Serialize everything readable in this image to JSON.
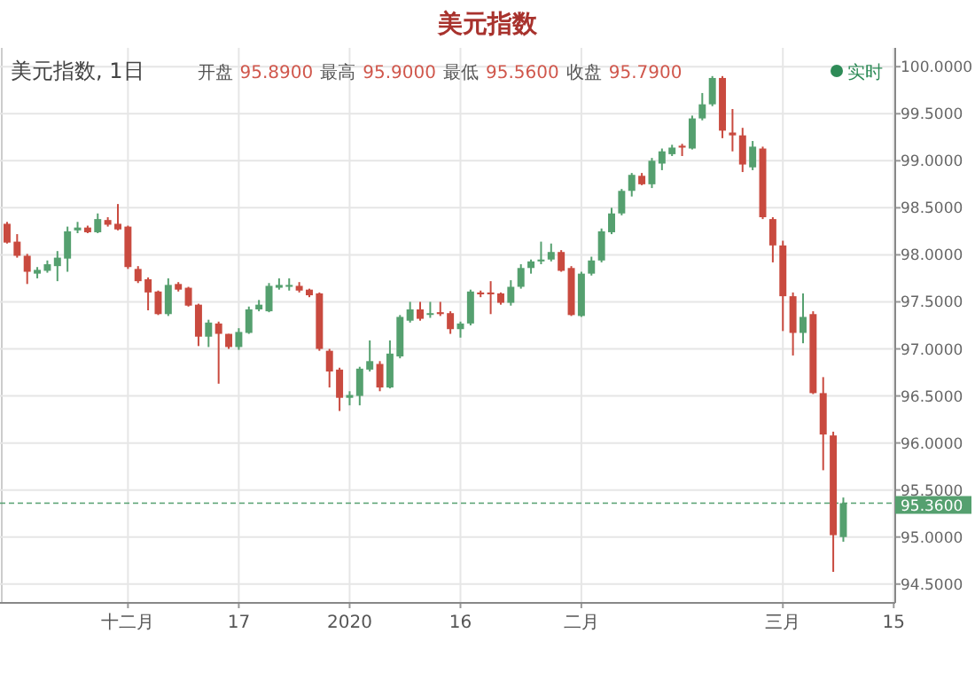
{
  "chart_data": {
    "type": "candlestick",
    "title": "美元指数",
    "annotations": [
      "美元指数, 1日",
      "开盘",
      "95.8900",
      "最高",
      "95.9000",
      "最低",
      "95.5600",
      "收盘",
      "95.7900",
      "实时"
    ],
    "categories": [
      null,
      null,
      null,
      null,
      null,
      null,
      null,
      null,
      null,
      null,
      null,
      null,
      "十二月",
      null,
      null,
      null,
      null,
      null,
      null,
      null,
      null,
      null,
      null,
      "17",
      null,
      null,
      null,
      null,
      null,
      null,
      null,
      null,
      null,
      null,
      "2020",
      null,
      null,
      null,
      null,
      null,
      null,
      null,
      null,
      null,
      null,
      "16",
      null,
      null,
      null,
      null,
      null,
      null,
      null,
      null,
      null,
      null,
      null,
      "二月",
      null,
      null,
      null,
      null,
      null,
      null,
      null,
      null,
      null,
      null,
      null,
      null,
      null,
      null,
      null,
      null,
      null,
      null,
      null,
      "三月",
      null,
      null,
      null,
      null,
      null,
      null,
      null,
      null,
      null,
      null,
      "15"
    ],
    "ohlc": [
      [
        98.33,
        98.35,
        98.12,
        98.13
      ],
      [
        98.14,
        98.22,
        97.97,
        97.99
      ],
      [
        97.99,
        98.01,
        97.69,
        97.82
      ],
      [
        97.8,
        97.87,
        97.75,
        97.84
      ],
      [
        97.83,
        97.94,
        97.81,
        97.9
      ],
      [
        97.88,
        98.04,
        97.72,
        97.97
      ],
      [
        97.96,
        98.3,
        97.82,
        98.25
      ],
      [
        98.26,
        98.35,
        98.23,
        98.29
      ],
      [
        98.29,
        98.31,
        98.23,
        98.24
      ],
      [
        98.24,
        98.44,
        98.23,
        98.38
      ],
      [
        98.37,
        98.4,
        98.3,
        98.32
      ],
      [
        98.33,
        98.54,
        98.26,
        98.27
      ],
      [
        98.3,
        98.31,
        97.85,
        97.87
      ],
      [
        97.85,
        97.88,
        97.7,
        97.72
      ],
      [
        97.74,
        97.76,
        97.41,
        97.6
      ],
      [
        97.61,
        97.62,
        97.36,
        97.37
      ],
      [
        97.37,
        97.75,
        97.35,
        97.68
      ],
      [
        97.69,
        97.71,
        97.61,
        97.63
      ],
      [
        97.65,
        97.66,
        97.45,
        97.46
      ],
      [
        97.47,
        97.48,
        97.03,
        97.13
      ],
      [
        97.13,
        97.31,
        97.02,
        97.28
      ],
      [
        97.27,
        97.29,
        96.63,
        97.16
      ],
      [
        97.16,
        97.16,
        97.0,
        97.02
      ],
      [
        97.02,
        97.22,
        96.99,
        97.18
      ],
      [
        97.17,
        97.45,
        97.16,
        97.42
      ],
      [
        97.42,
        97.52,
        97.4,
        97.47
      ],
      [
        97.4,
        97.7,
        97.39,
        97.67
      ],
      [
        97.65,
        97.75,
        97.63,
        97.68
      ],
      [
        97.66,
        97.75,
        97.62,
        97.68
      ],
      [
        97.67,
        97.71,
        97.6,
        97.62
      ],
      [
        97.63,
        97.64,
        97.55,
        97.57
      ],
      [
        97.59,
        97.6,
        96.98,
        97.0
      ],
      [
        96.98,
        97.0,
        96.59,
        96.76
      ],
      [
        96.78,
        96.8,
        96.34,
        96.48
      ],
      [
        96.48,
        96.55,
        96.4,
        96.51
      ],
      [
        96.5,
        96.81,
        96.4,
        96.79
      ],
      [
        96.78,
        97.09,
        96.76,
        96.87
      ],
      [
        96.84,
        96.87,
        96.55,
        96.59
      ],
      [
        96.59,
        97.09,
        96.58,
        96.95
      ],
      [
        96.92,
        97.36,
        96.9,
        97.34
      ],
      [
        97.3,
        97.5,
        97.28,
        97.42
      ],
      [
        97.42,
        97.5,
        97.3,
        97.32
      ],
      [
        97.37,
        97.5,
        97.33,
        97.38
      ],
      [
        97.39,
        97.5,
        97.35,
        97.37
      ],
      [
        97.38,
        97.4,
        97.16,
        97.21
      ],
      [
        97.21,
        97.29,
        97.12,
        97.27
      ],
      [
        97.27,
        97.63,
        97.25,
        97.61
      ],
      [
        97.6,
        97.62,
        97.55,
        97.58
      ],
      [
        97.6,
        97.72,
        97.37,
        97.58
      ],
      [
        97.59,
        97.6,
        97.47,
        97.49
      ],
      [
        97.49,
        97.73,
        97.46,
        97.66
      ],
      [
        97.66,
        97.9,
        97.64,
        97.86
      ],
      [
        97.86,
        97.95,
        97.8,
        97.93
      ],
      [
        97.93,
        98.14,
        97.9,
        97.95
      ],
      [
        97.95,
        98.12,
        97.93,
        98.03
      ],
      [
        98.03,
        98.05,
        97.82,
        97.83
      ],
      [
        97.86,
        97.88,
        97.35,
        97.36
      ],
      [
        97.35,
        97.82,
        97.34,
        97.8
      ],
      [
        97.8,
        97.98,
        97.78,
        97.94
      ],
      [
        97.94,
        98.28,
        97.92,
        98.25
      ],
      [
        98.24,
        98.5,
        98.22,
        98.44
      ],
      [
        98.44,
        98.7,
        98.42,
        98.68
      ],
      [
        98.68,
        98.87,
        98.62,
        98.85
      ],
      [
        98.84,
        98.87,
        98.74,
        98.75
      ],
      [
        98.75,
        99.03,
        98.71,
        99.0
      ],
      [
        98.97,
        99.13,
        98.9,
        99.1
      ],
      [
        99.07,
        99.17,
        99.05,
        99.14
      ],
      [
        99.16,
        99.18,
        99.05,
        99.14
      ],
      [
        99.13,
        99.48,
        99.12,
        99.45
      ],
      [
        99.45,
        99.72,
        99.43,
        99.6
      ],
      [
        99.6,
        99.9,
        99.58,
        99.88
      ],
      [
        99.88,
        99.9,
        99.24,
        99.32
      ],
      [
        99.3,
        99.55,
        99.1,
        99.27
      ],
      [
        99.27,
        99.35,
        98.88,
        98.96
      ],
      [
        98.93,
        99.21,
        98.9,
        99.15
      ],
      [
        99.13,
        99.15,
        98.38,
        98.4
      ],
      [
        98.38,
        98.4,
        97.92,
        98.1
      ],
      [
        98.1,
        98.15,
        97.19,
        97.56
      ],
      [
        97.56,
        97.6,
        96.93,
        97.17
      ],
      [
        97.17,
        97.59,
        97.06,
        97.34
      ],
      [
        97.37,
        97.4,
        96.52,
        96.53
      ],
      [
        96.53,
        96.7,
        95.71,
        96.09
      ],
      [
        96.08,
        96.12,
        94.63,
        95.02
      ],
      [
        95.0,
        95.42,
        94.95,
        95.36
      ],
      null,
      null,
      null,
      null,
      null
    ],
    "colors": [
      "#c94a3f",
      "#c94a3f",
      "#c94a3f",
      "#55a06f",
      "#55a06f",
      "#55a06f",
      "#55a06f",
      "#55a06f",
      "#c94a3f",
      "#55a06f",
      "#c94a3f",
      "#c94a3f",
      "#c94a3f",
      "#c94a3f",
      "#c94a3f",
      "#c94a3f",
      "#55a06f",
      "#c94a3f",
      "#c94a3f",
      "#c94a3f",
      "#55a06f",
      "#c94a3f",
      "#c94a3f",
      "#55a06f",
      "#55a06f",
      "#55a06f",
      "#55a06f",
      "#55a06f",
      "#55a06f",
      "#c94a3f",
      "#c94a3f",
      "#c94a3f",
      "#c94a3f",
      "#c94a3f",
      "#55a06f",
      "#55a06f",
      "#55a06f",
      "#c94a3f",
      "#55a06f",
      "#55a06f",
      "#55a06f",
      "#c94a3f",
      "#55a06f",
      "#c94a3f",
      "#c94a3f",
      "#55a06f",
      "#55a06f",
      "#c94a3f",
      "#c94a3f",
      "#c94a3f",
      "#55a06f",
      "#55a06f",
      "#55a06f",
      "#55a06f",
      "#55a06f",
      "#c94a3f",
      "#c94a3f",
      "#55a06f",
      "#55a06f",
      "#55a06f",
      "#55a06f",
      "#55a06f",
      "#55a06f",
      "#c94a3f",
      "#55a06f",
      "#55a06f",
      "#55a06f",
      "#c94a3f",
      "#55a06f",
      "#55a06f",
      "#55a06f",
      "#c94a3f",
      "#c94a3f",
      "#c94a3f",
      "#55a06f",
      "#c94a3f",
      "#c94a3f",
      "#c94a3f",
      "#c94a3f",
      "#55a06f",
      "#c94a3f",
      "#c94a3f",
      "#c94a3f",
      "#55a06f",
      null,
      null,
      null,
      null,
      null
    ],
    "ylim": [
      94.3,
      100.2
    ],
    "yticks": [
      {
        "value": 94.5,
        "label": "94.5000"
      },
      {
        "value": 95,
        "label": "95.0000"
      },
      {
        "value": 95.5,
        "label": "95.5000"
      },
      {
        "value": 96,
        "label": "96.0000"
      },
      {
        "value": 96.5,
        "label": "96.5000"
      },
      {
        "value": 97,
        "label": "97.0000"
      },
      {
        "value": 97.5,
        "label": "97.5000"
      },
      {
        "value": 98,
        "label": "98.0000"
      },
      {
        "value": 98.5,
        "label": "98.5000"
      },
      {
        "value": 99,
        "label": "99.0000"
      },
      {
        "value": 99.5,
        "label": "99.5000"
      },
      {
        "value": 100,
        "label": "100.0000"
      }
    ],
    "grid": true,
    "ref_lines": [
      {
        "axis": "y",
        "value": 95.36,
        "label": "95.3600",
        "color": "#55a06f",
        "line_style": "dashed"
      }
    ]
  }
}
